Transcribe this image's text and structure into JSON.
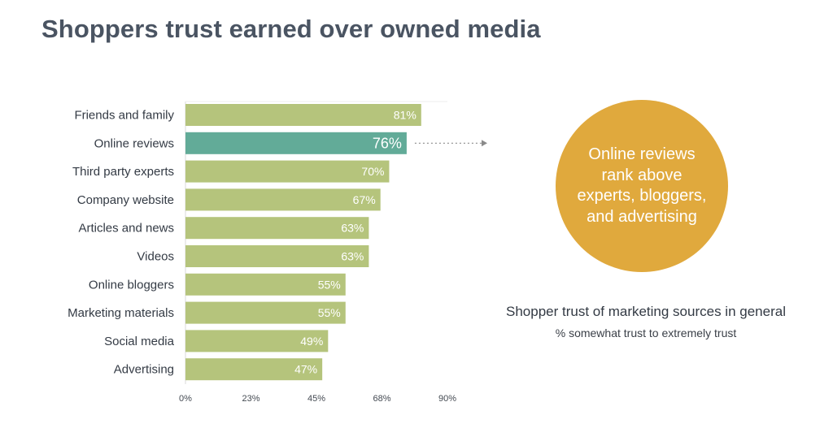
{
  "title": "Shoppers trust earned over owned media",
  "callout": {
    "text": "Online reviews rank above experts, bloggers, and advertising",
    "color": "#e0a93d"
  },
  "caption": {
    "main": "Shopper trust of marketing sources in general",
    "sub": "% somewhat trust to extremely trust"
  },
  "chart_data": {
    "type": "bar",
    "orientation": "horizontal",
    "categories": [
      "Friends and family",
      "Online reviews",
      "Third party experts",
      "Company website",
      "Articles and news",
      "Videos",
      "Online bloggers",
      "Marketing materials",
      "Social media",
      "Advertising"
    ],
    "values": [
      81,
      76,
      70,
      67,
      63,
      63,
      55,
      55,
      49,
      47
    ],
    "value_labels": [
      "81%",
      "76%",
      "70%",
      "67%",
      "63%",
      "63%",
      "55%",
      "55%",
      "49%",
      "47%"
    ],
    "highlight_index": 1,
    "xlim": [
      0,
      90
    ],
    "xticks": [
      0,
      22.5,
      45,
      67.5,
      90
    ],
    "xtick_labels": [
      "0%",
      "23%",
      "45%",
      "68%",
      "90%"
    ],
    "colors": {
      "bar": "#b5c47c",
      "highlight": "#62ab98",
      "connector": "#8a8a8a"
    },
    "grid": false,
    "legend": "none"
  }
}
